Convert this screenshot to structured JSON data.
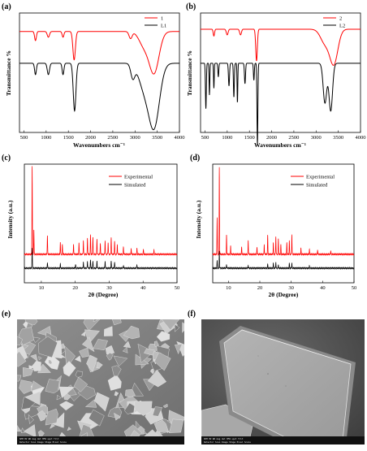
{
  "panels": {
    "a": {
      "letter": "(a)",
      "type": "line",
      "xlabel": "Wavenumbers cm⁻¹",
      "ylabel": "Transmittance %",
      "xlim": [
        400,
        4000
      ],
      "xticks": [
        500,
        1000,
        1500,
        2000,
        2500,
        3000,
        3500,
        4000
      ],
      "legend_position": "top-right",
      "series": [
        {
          "name": "1",
          "color": "#ff0000",
          "baseline": 0.12,
          "dips": [
            [
              760,
              0.08,
              20
            ],
            [
              1050,
              0.05,
              25
            ],
            [
              1380,
              0.05,
              20
            ],
            [
              1630,
              0.25,
              28
            ],
            [
              2900,
              0.06,
              35
            ],
            [
              3200,
              0.12,
              110
            ],
            [
              3430,
              0.36,
              110
            ]
          ]
        },
        {
          "name": "L1",
          "color": "#000000",
          "baseline": 0.4,
          "dips": [
            [
              760,
              0.1,
              20
            ],
            [
              1050,
              0.1,
              25
            ],
            [
              1380,
              0.1,
              20
            ],
            [
              1640,
              0.42,
              30
            ],
            [
              2950,
              0.12,
              45
            ],
            [
              3200,
              0.2,
              120
            ],
            [
              3430,
              0.55,
              120
            ]
          ]
        }
      ]
    },
    "b": {
      "letter": "(b)",
      "type": "line",
      "xlabel": "Wavenumbers cm⁻¹",
      "ylabel": "Transmittance %",
      "xlim": [
        400,
        4000
      ],
      "xticks": [
        500,
        1000,
        1500,
        2000,
        2500,
        3000,
        3500,
        4000
      ],
      "legend_position": "top-right",
      "series": [
        {
          "name": "2",
          "color": "#ff0000",
          "baseline": 0.1,
          "dips": [
            [
              700,
              0.06,
              15
            ],
            [
              1000,
              0.05,
              20
            ],
            [
              1300,
              0.05,
              20
            ],
            [
              1660,
              0.28,
              18
            ],
            [
              3200,
              0.12,
              100
            ],
            [
              3400,
              0.3,
              90
            ]
          ]
        },
        {
          "name": "L2",
          "color": "#000000",
          "baseline": 0.4,
          "dips": [
            [
              520,
              0.4,
              10
            ],
            [
              600,
              0.28,
              8
            ],
            [
              700,
              0.22,
              8
            ],
            [
              800,
              0.12,
              10
            ],
            [
              1040,
              0.2,
              12
            ],
            [
              1150,
              0.3,
              10
            ],
            [
              1230,
              0.35,
              8
            ],
            [
              1400,
              0.18,
              12
            ],
            [
              1600,
              0.15,
              10
            ],
            [
              1680,
              0.72,
              10
            ],
            [
              3200,
              0.35,
              40
            ],
            [
              3330,
              0.42,
              40
            ]
          ]
        }
      ]
    },
    "c": {
      "letter": "(c)",
      "type": "line",
      "xlabel": "2θ (Degree)",
      "ylabel": "Intensity (a.u.)",
      "xlim": [
        5,
        50
      ],
      "xticks": [
        10,
        20,
        30,
        40,
        50
      ],
      "legend_position": "top-right",
      "series": [
        {
          "name": "Experimental",
          "color": "#ff0000",
          "offset": 0.14,
          "peaks": [
            [
              7.3,
              0.9
            ],
            [
              7.8,
              0.25
            ],
            [
              11.8,
              0.2
            ],
            [
              15.6,
              0.12
            ],
            [
              16.2,
              0.1
            ],
            [
              19.5,
              0.1
            ],
            [
              21.1,
              0.12
            ],
            [
              22.4,
              0.14
            ],
            [
              23.6,
              0.16
            ],
            [
              24.5,
              0.2
            ],
            [
              25.2,
              0.18
            ],
            [
              26.4,
              0.16
            ],
            [
              27.4,
              0.12
            ],
            [
              28.8,
              0.14
            ],
            [
              29.7,
              0.12
            ],
            [
              30.6,
              0.18
            ],
            [
              31.6,
              0.14
            ],
            [
              32.4,
              0.1
            ],
            [
              34.2,
              0.08
            ],
            [
              36.5,
              0.06
            ],
            [
              38.2,
              0.06
            ],
            [
              40.1,
              0.05
            ],
            [
              43.2,
              0.04
            ]
          ]
        },
        {
          "name": "Simulated",
          "color": "#000000",
          "offset": 0.0,
          "peaks": [
            [
              7.3,
              0.2
            ],
            [
              11.8,
              0.06
            ],
            [
              15.6,
              0.04
            ],
            [
              20.1,
              0.04
            ],
            [
              22.4,
              0.06
            ],
            [
              23.6,
              0.07
            ],
            [
              24.5,
              0.09
            ],
            [
              25.2,
              0.07
            ],
            [
              26.4,
              0.08
            ],
            [
              28.8,
              0.07
            ],
            [
              30.6,
              0.08
            ],
            [
              31.6,
              0.06
            ],
            [
              34.2,
              0.03
            ],
            [
              38.2,
              0.03
            ]
          ]
        }
      ]
    },
    "d": {
      "letter": "(d)",
      "type": "line",
      "xlabel": "2θ (Degree)",
      "ylabel": "Intensity (a.u.)",
      "xlim": [
        5,
        50
      ],
      "xticks": [
        10,
        20,
        30,
        40,
        50
      ],
      "legend_position": "top-right",
      "series": [
        {
          "name": "Experimental",
          "color": "#ff0000",
          "offset": 0.14,
          "peaks": [
            [
              6.4,
              0.38
            ],
            [
              7.1,
              0.88
            ],
            [
              9.4,
              0.2
            ],
            [
              10.7,
              0.08
            ],
            [
              14.2,
              0.08
            ],
            [
              16.3,
              0.14
            ],
            [
              19.1,
              0.08
            ],
            [
              21.4,
              0.1
            ],
            [
              22.5,
              0.2
            ],
            [
              24.3,
              0.12
            ],
            [
              25.1,
              0.18
            ],
            [
              25.9,
              0.16
            ],
            [
              26.7,
              0.1
            ],
            [
              28.6,
              0.12
            ],
            [
              29.4,
              0.14
            ],
            [
              30.2,
              0.2
            ],
            [
              33.1,
              0.06
            ],
            [
              35.8,
              0.05
            ],
            [
              38.4,
              0.05
            ],
            [
              42.6,
              0.04
            ]
          ]
        },
        {
          "name": "Simulated",
          "color": "#000000",
          "offset": 0.0,
          "peaks": [
            [
              6.4,
              0.08
            ],
            [
              7.1,
              0.18
            ],
            [
              9.4,
              0.04
            ],
            [
              16.3,
              0.03
            ],
            [
              22.5,
              0.04
            ],
            [
              24.3,
              0.05
            ],
            [
              25.1,
              0.06
            ],
            [
              25.9,
              0.04
            ],
            [
              29.4,
              0.05
            ],
            [
              30.2,
              0.05
            ],
            [
              35.8,
              0.02
            ]
          ]
        }
      ]
    },
    "e": {
      "letter": "(e)",
      "image": "sem-micrograph-crystallites"
    },
    "f": {
      "letter": "(f)",
      "image": "sem-micrograph-single-crystal"
    }
  }
}
